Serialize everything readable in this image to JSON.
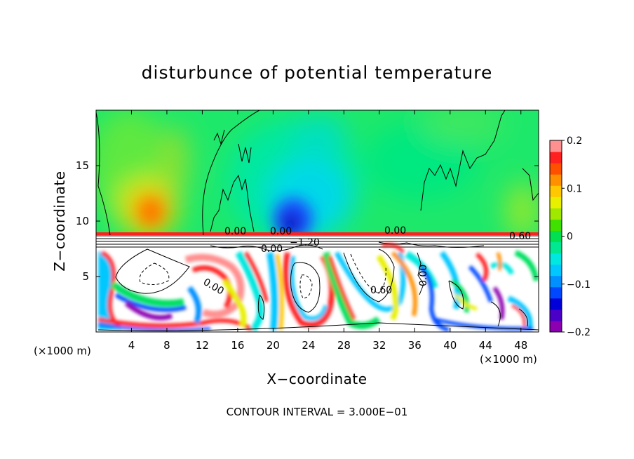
{
  "chart_data": {
    "type": "heatmap",
    "title": "disturbunce of potential temperature",
    "xlabel": "X−coordinate",
    "ylabel": "Z−coordinate",
    "x_unit": "(×1000 m)",
    "x_unit_right": "(×1000 m)",
    "xlim": [
      0,
      50
    ],
    "ylim": [
      0,
      20
    ],
    "x_ticks": [
      4,
      8,
      12,
      16,
      20,
      24,
      28,
      32,
      36,
      40,
      44,
      48
    ],
    "x_tick_labels": [
      "4",
      "8",
      "12",
      "16",
      "20",
      "24",
      "28",
      "32",
      "36",
      "40",
      "44",
      "48"
    ],
    "y_ticks": [
      5,
      10,
      15
    ],
    "y_tick_labels": [
      "5",
      "10",
      "15"
    ],
    "colorbar": {
      "range": [
        -0.2,
        0.2
      ],
      "tick_values": [
        0.2,
        0.1,
        0,
        -0.1,
        -0.2
      ],
      "tick_labels": [
        "0.2",
        "0.1",
        "0",
        "−0.1",
        "−0.2"
      ],
      "colors": [
        "#8b00b0",
        "#4b00c8",
        "#0000d8",
        "#0048ff",
        "#0090ff",
        "#00c8ff",
        "#00e8e0",
        "#00e890",
        "#00e050",
        "#40e000",
        "#a0e800",
        "#e8f000",
        "#ffc800",
        "#ff9000",
        "#ff5000",
        "#ff2020",
        "#ff9090"
      ]
    },
    "contour_labels": [
      "0.00",
      "0.00",
      "0.00",
      "−1.20",
      "0.00",
      "0.60",
      "0.00",
      "0.60",
      "0.00"
    ],
    "footer": "CONTOUR INTERVAL = 3.000E−01"
  }
}
